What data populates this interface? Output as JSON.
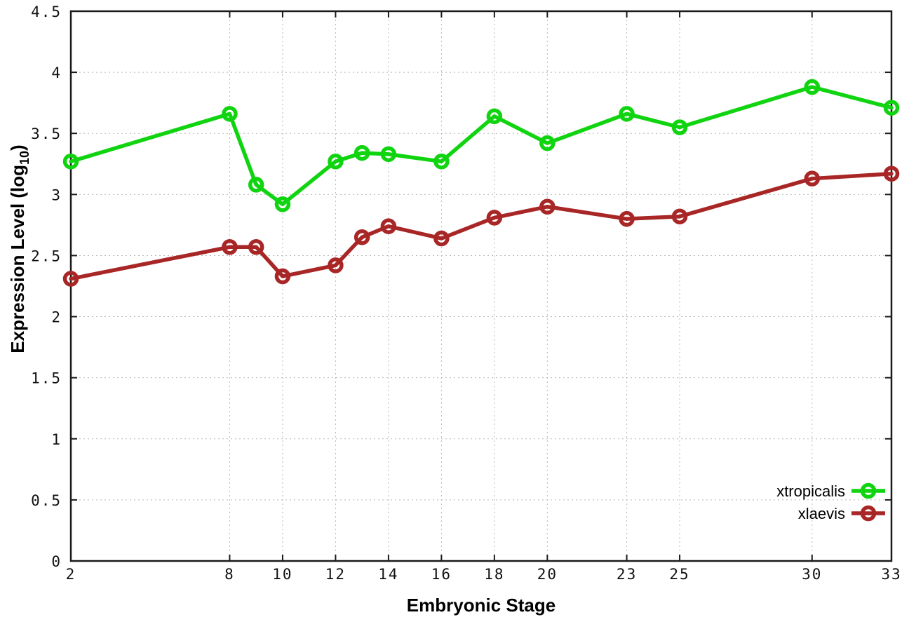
{
  "figure": {
    "background": "#ffffff",
    "colors": {
      "grid": "#b8b8b8",
      "axis": "#1a1a1a",
      "tick_text": "#111111"
    }
  },
  "chart_data": {
    "type": "line",
    "title": "",
    "xlabel": "Embryonic Stage",
    "ylabel": "Expression Level (log10)",
    "ylabel_parts": {
      "prefix": "Expression Level (log",
      "sub": "10",
      "suffix": ")"
    },
    "x": [
      2,
      8,
      9,
      10,
      12,
      13,
      14,
      16,
      18,
      20,
      23,
      25,
      30,
      33
    ],
    "series": [
      {
        "name": "xtropicalis",
        "color": "#11d411",
        "values": [
          3.27,
          3.66,
          3.08,
          2.92,
          3.27,
          3.34,
          3.33,
          3.27,
          3.64,
          3.42,
          3.66,
          3.55,
          3.88,
          3.71
        ]
      },
      {
        "name": "xlaevis",
        "color": "#a82626",
        "values": [
          2.31,
          2.57,
          2.57,
          2.33,
          2.42,
          2.65,
          2.74,
          2.64,
          2.81,
          2.9,
          2.8,
          2.82,
          3.13,
          3.17
        ]
      }
    ],
    "xticks": [
      2,
      8,
      10,
      12,
      14,
      16,
      18,
      20,
      23,
      25,
      30,
      33
    ],
    "yticks": [
      0,
      0.5,
      1,
      1.5,
      2,
      2.5,
      3,
      3.5,
      4,
      4.5
    ],
    "xlim": [
      2,
      33
    ],
    "ylim": [
      0,
      4.5
    ],
    "grid": true,
    "legend_position": "bottom-right",
    "legend": [
      "xtropicalis",
      "xlaevis"
    ]
  }
}
